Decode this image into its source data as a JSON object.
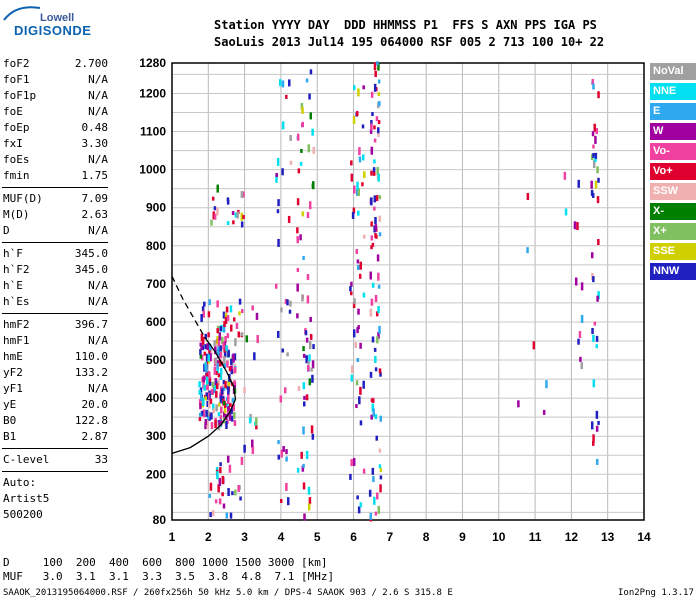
{
  "logo": {
    "top": "Lowell",
    "main": "DIGISONDE"
  },
  "header": {
    "line1": "Station YYYY DAY  DDD HHMMSS P1  FFS S AXN PPS IGA PS",
    "line2": "SaoLuis 2013 Jul14 195 064000 RSF 005 2 713 100 10+ 22"
  },
  "params_groups": [
    [
      {
        "name": "foF2",
        "value": "2.700"
      },
      {
        "name": "foF1",
        "value": "N/A"
      },
      {
        "name": "foF1p",
        "value": "N/A"
      },
      {
        "name": "foE",
        "value": "N/A"
      },
      {
        "name": "foEp",
        "value": "0.48"
      },
      {
        "name": "fxI",
        "value": "3.30"
      },
      {
        "name": "foEs",
        "value": "N/A"
      },
      {
        "name": "fmin",
        "value": "1.75"
      }
    ],
    [
      {
        "name": "MUF(D)",
        "value": "7.09"
      },
      {
        "name": "M(D)",
        "value": "2.63"
      },
      {
        "name": "D",
        "value": "N/A"
      }
    ],
    [
      {
        "name": "h`F",
        "value": "345.0"
      },
      {
        "name": "h`F2",
        "value": "345.0"
      },
      {
        "name": "h`E",
        "value": "N/A"
      },
      {
        "name": "h`Es",
        "value": "N/A"
      }
    ],
    [
      {
        "name": "hmF2",
        "value": "396.7"
      },
      {
        "name": "hmF1",
        "value": "N/A"
      },
      {
        "name": "hmE",
        "value": "110.0"
      },
      {
        "name": "yF2",
        "value": "133.2"
      },
      {
        "name": "yF1",
        "value": "N/A"
      },
      {
        "name": "yE",
        "value": "20.0"
      },
      {
        "name": "B0",
        "value": "122.8"
      },
      {
        "name": "B1",
        "value": "2.87"
      }
    ],
    [
      {
        "name": "C-level",
        "value": "33"
      }
    ]
  ],
  "auto_lines": [
    "Auto:",
    "Artist5",
    "500200"
  ],
  "legend": [
    {
      "label": "NoVal",
      "color": "#a0a0a0"
    },
    {
      "label": "NNE",
      "color": "#00e0f0"
    },
    {
      "label": "E",
      "color": "#30a8f0"
    },
    {
      "label": "W",
      "color": "#a000a0"
    },
    {
      "label": "Vo-",
      "color": "#f040a0"
    },
    {
      "label": "Vo+",
      "color": "#e00030"
    },
    {
      "label": "SSW",
      "color": "#f0b0b0"
    },
    {
      "label": "X-",
      "color": "#008000"
    },
    {
      "label": "X+",
      "color": "#80c060"
    },
    {
      "label": "SSE",
      "color": "#d0d000"
    },
    {
      "label": "NNW",
      "color": "#2020c0"
    }
  ],
  "bottom_table": {
    "d_line": "D     100  200  400  600  800 1000 1500 3000 [km]",
    "muf_line": "MUF   3.0  3.1  3.1  3.3  3.5  3.8  4.8  7.1 [MHz]"
  },
  "footer": {
    "left": "SAAOK_2013195064000.RSF / 260fx256h 50 kHz 5.0 km / DPS-4 SAAOK 903 / 2.6 S 315.8 E",
    "right": "Ion2Png 1.3.17"
  },
  "chart_data": {
    "type": "scatter",
    "x_ticks": [
      1,
      2,
      3,
      4,
      5,
      6,
      7,
      8,
      9,
      10,
      11,
      12,
      13,
      14
    ],
    "y_ticks": [
      80,
      200,
      300,
      400,
      500,
      600,
      700,
      800,
      900,
      1000,
      1100,
      1200,
      1280
    ],
    "xlim": [
      1,
      14
    ],
    "ylim": [
      80,
      1280
    ],
    "grid": true,
    "xlabel": "",
    "ylabel": "",
    "traces": [
      {
        "id": "profile-solid",
        "style": "solid",
        "points": [
          [
            1.0,
            255
          ],
          [
            1.5,
            270
          ],
          [
            2.0,
            300
          ],
          [
            2.35,
            330
          ],
          [
            2.6,
            365
          ],
          [
            2.75,
            397
          ],
          [
            2.7,
            430
          ],
          [
            2.5,
            470
          ],
          [
            2.2,
            520
          ],
          [
            1.9,
            560
          ]
        ]
      },
      {
        "id": "profile-dashed",
        "style": "dashed",
        "points": [
          [
            1.0,
            720
          ],
          [
            1.3,
            660
          ],
          [
            1.6,
            610
          ],
          [
            1.9,
            560
          ]
        ]
      }
    ],
    "clusters": [
      {
        "x": [
          1.75,
          2.75
        ],
        "y": [
          330,
          560
        ],
        "n": 220
      },
      {
        "x": [
          1.8,
          2.9
        ],
        "y": [
          560,
          660
        ],
        "n": 30
      },
      {
        "x": [
          1.95,
          2.95
        ],
        "y": [
          80,
          250
        ],
        "n": 28
      },
      {
        "x": [
          2.0,
          3.0
        ],
        "y": [
          850,
          960
        ],
        "n": 20
      },
      {
        "x": [
          2.9,
          3.4
        ],
        "y": [
          260,
          650
        ],
        "n": 18
      },
      {
        "x": [
          4.4,
          4.9
        ],
        "y": [
          90,
          1280
        ],
        "n": 70
      },
      {
        "x": [
          3.85,
          4.3
        ],
        "y": [
          120,
          1270
        ],
        "n": 35
      },
      {
        "x": [
          5.9,
          6.3
        ],
        "y": [
          90,
          1280
        ],
        "n": 55
      },
      {
        "x": [
          6.45,
          6.75
        ],
        "y": [
          80,
          1280
        ],
        "n": 90
      },
      {
        "x": [
          12.55,
          12.75
        ],
        "y": [
          190,
          1250
        ],
        "n": 40
      },
      {
        "x": [
          11.8,
          12.3
        ],
        "y": [
          300,
          1100
        ],
        "n": 12
      },
      {
        "x": [
          10.4,
          11.4
        ],
        "y": [
          320,
          1100
        ],
        "n": 6
      }
    ]
  }
}
